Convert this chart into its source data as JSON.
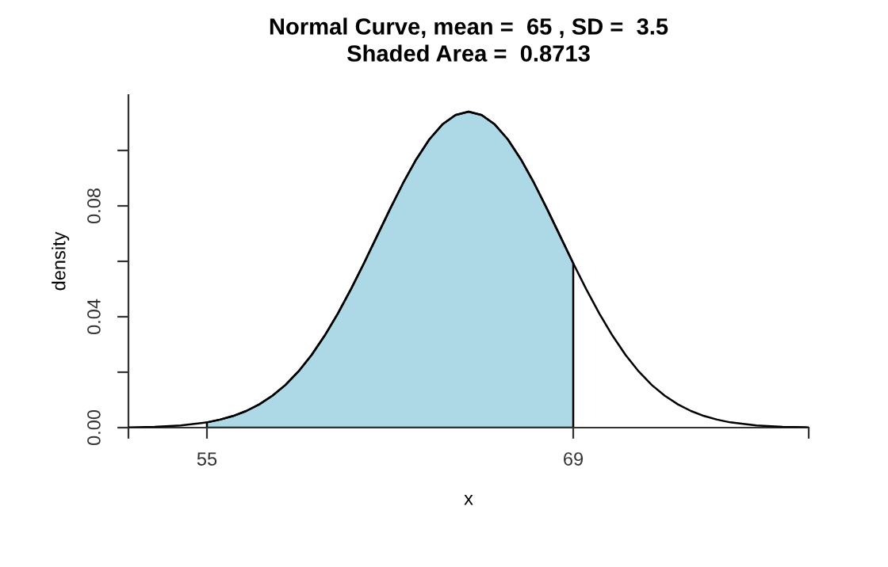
{
  "chart_data": {
    "type": "line",
    "title": "Normal Curve, mean =  65 , SD =  3.5",
    "subtitle": "Shaded Area =  0.8713",
    "xlabel": "x",
    "ylabel": "density",
    "x": [
      52,
      53,
      54,
      55,
      55.5,
      56,
      56.5,
      57,
      57.5,
      58,
      58.5,
      59,
      59.5,
      60,
      60.5,
      61,
      61.5,
      62,
      62.5,
      63,
      63.5,
      64,
      64.5,
      65,
      65.5,
      66,
      66.5,
      67,
      67.5,
      68,
      68.5,
      69,
      69.5,
      70,
      70.5,
      71,
      71.5,
      72,
      72.5,
      73,
      73.5,
      74,
      74.5,
      75,
      76,
      77,
      78
    ],
    "series": [
      {
        "color": "#000000",
        "values": [
          0.0001,
          0.0003,
          0.0008,
          0.0019,
          0.0029,
          0.0042,
          0.006,
          0.0084,
          0.0115,
          0.0154,
          0.0203,
          0.0262,
          0.0332,
          0.0411,
          0.0499,
          0.0593,
          0.0691,
          0.0789,
          0.0883,
          0.0968,
          0.104,
          0.1094,
          0.1128,
          0.114,
          0.1128,
          0.1094,
          0.104,
          0.0968,
          0.0883,
          0.0789,
          0.0691,
          0.0593,
          0.0499,
          0.0411,
          0.0332,
          0.0262,
          0.0203,
          0.0154,
          0.0115,
          0.0084,
          0.006,
          0.0042,
          0.0029,
          0.0019,
          0.0008,
          0.0003,
          0.0001
        ]
      },
      {
        "type": "area",
        "color": "#add8e6",
        "x": [
          55,
          55.5,
          56,
          56.5,
          57,
          57.5,
          58,
          58.5,
          59,
          59.5,
          60,
          60.5,
          61,
          61.5,
          62,
          62.5,
          63,
          63.5,
          64,
          64.5,
          65,
          65.5,
          66,
          66.5,
          67,
          67.5,
          68,
          68.5,
          69
        ],
        "values": [
          0.0019,
          0.0029,
          0.0042,
          0.006,
          0.0084,
          0.0115,
          0.0154,
          0.0203,
          0.0262,
          0.0332,
          0.0411,
          0.0499,
          0.0593,
          0.0691,
          0.0789,
          0.0883,
          0.0968,
          0.104,
          0.1094,
          0.1128,
          0.114,
          0.1128,
          0.1094,
          0.104,
          0.0968,
          0.0883,
          0.0789,
          0.0691,
          0.0593
        ]
      }
    ],
    "xlim": [
      52,
      78
    ],
    "xticks": [
      {
        "value": 52,
        "label": null
      },
      55,
      69,
      {
        "value": 78,
        "label": null
      }
    ],
    "ylim": [
      0,
      0.12
    ],
    "yticks": [
      {
        "value": 0,
        "label": "0.00"
      },
      {
        "value": 0.02,
        "label": null
      },
      {
        "value": 0.04,
        "label": "0.04"
      },
      {
        "value": 0.06,
        "label": null
      },
      {
        "value": 0.08,
        "label": "0.08"
      },
      {
        "value": 0.1,
        "label": null
      }
    ]
  }
}
